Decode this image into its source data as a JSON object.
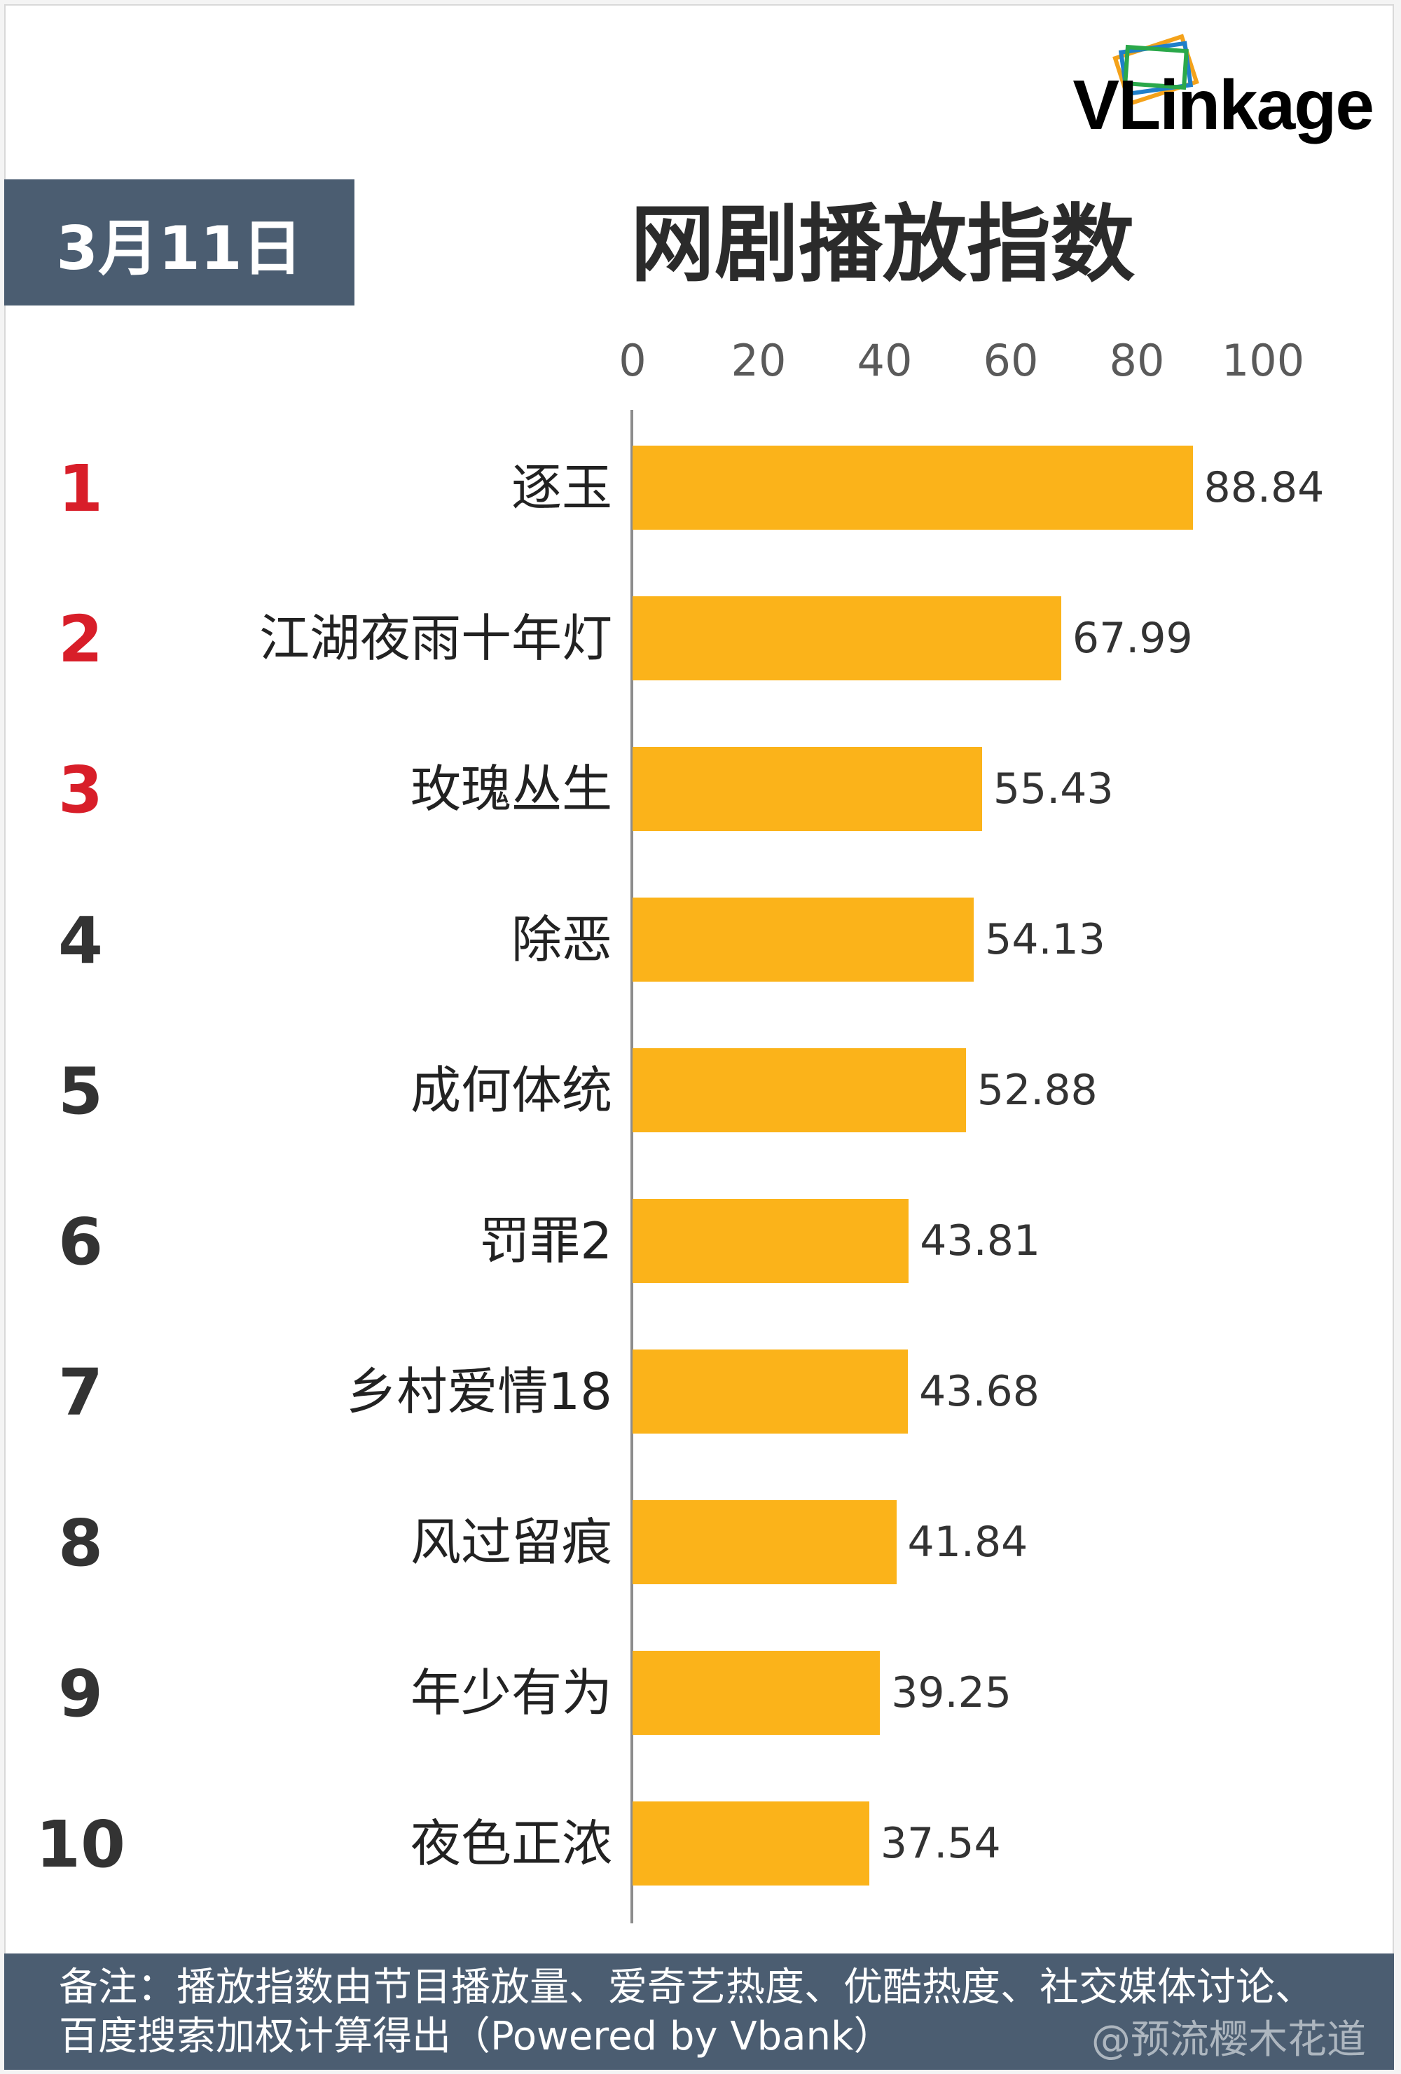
{
  "brand": {
    "logo_text": "VLinkage",
    "logo_icon": "stacked-cards-icon",
    "colors": {
      "red": "#cc1f2d",
      "icon_green": "#2aa84a",
      "icon_blue": "#1f7fc9",
      "icon_orange": "#f4a21a"
    }
  },
  "header": {
    "date": "3月11日",
    "title": "网剧播放指数"
  },
  "colors": {
    "bar": "#fbb31a",
    "rank_top": "#d81e29",
    "rank_normal": "#333333",
    "date_box": "#4b5d71",
    "footer": "#4b5d71"
  },
  "chart_data": {
    "type": "bar",
    "orientation": "horizontal",
    "title": "网剧播放指数",
    "ranks": [
      "1",
      "2",
      "3",
      "4",
      "5",
      "6",
      "7",
      "8",
      "9",
      "10"
    ],
    "categories": [
      "逐玉",
      "江湖夜雨十年灯",
      "玫瑰丛生",
      "除恶",
      "成何体统",
      "罚罪2",
      "乡村爱情18",
      "风过留痕",
      "年少有为",
      "夜色正浓"
    ],
    "values": [
      88.84,
      67.99,
      55.43,
      54.13,
      52.88,
      43.81,
      43.68,
      41.84,
      39.25,
      37.54
    ],
    "value_labels": [
      "88.84",
      "67.99",
      "55.43",
      "54.13",
      "52.88",
      "43.81",
      "43.68",
      "41.84",
      "39.25",
      "37.54"
    ],
    "xlim": [
      0,
      100
    ],
    "ticks": [
      "0",
      "20",
      "40",
      "60",
      "80",
      "100"
    ],
    "tick_values": [
      0,
      20,
      40,
      60,
      80,
      100
    ],
    "axis_position": "top",
    "grid": false,
    "legend": "none"
  },
  "footer": {
    "note": "备注：播放指数由节目播放量、爱奇艺热度、优酷热度、社交媒体讨论、百度搜索加权计算得出（Powered by Vbank）"
  },
  "watermark": {
    "text": "@预流樱木花道"
  }
}
